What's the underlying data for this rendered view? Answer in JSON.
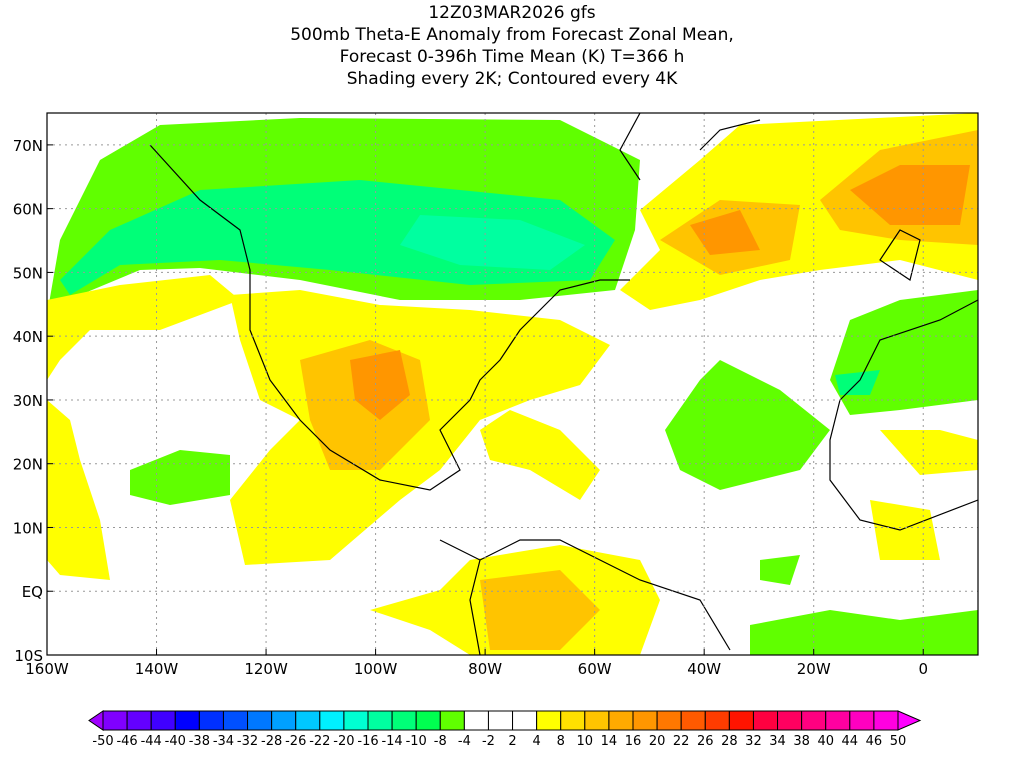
{
  "titles": [
    "12Z03MAR2026 gfs",
    "500mb Theta-E Anomaly from Forecast Zonal Mean,",
    "Forecast 0-396h Time Mean (K) T=366 h",
    "Shading every 2K; Contoured every 4K"
  ],
  "chart_data": {
    "type": "heatmap",
    "title": "500mb Theta-E Anomaly from Forecast Zonal Mean, Forecast 0-396h Time Mean (K) T=366 h",
    "units": "K",
    "xlim": [
      -160,
      10
    ],
    "ylim": [
      -10,
      75
    ],
    "grid": true,
    "x_ticks": [
      {
        "v": -160,
        "label": "160W"
      },
      {
        "v": -140,
        "label": "140W"
      },
      {
        "v": -120,
        "label": "120W"
      },
      {
        "v": -100,
        "label": "100W"
      },
      {
        "v": -80,
        "label": "80W"
      },
      {
        "v": -60,
        "label": "60W"
      },
      {
        "v": -40,
        "label": "40W"
      },
      {
        "v": -20,
        "label": "20W"
      },
      {
        "v": 0,
        "label": "0"
      }
    ],
    "y_ticks": [
      {
        "v": 70,
        "label": "70N"
      },
      {
        "v": 60,
        "label": "60N"
      },
      {
        "v": 50,
        "label": "50N"
      },
      {
        "v": 40,
        "label": "40N"
      },
      {
        "v": 30,
        "label": "30N"
      },
      {
        "v": 20,
        "label": "20N"
      },
      {
        "v": 10,
        "label": "10N"
      },
      {
        "v": 0,
        "label": "EQ"
      },
      {
        "v": -10,
        "label": "10S"
      }
    ],
    "colorbar": {
      "labels": [
        "-50",
        "-46",
        "-44",
        "-40",
        "-38",
        "-34",
        "-32",
        "-28",
        "-26",
        "-22",
        "-20",
        "-16",
        "-14",
        "-10",
        "-8",
        "-4",
        "-2",
        "2",
        "4",
        "8",
        "10",
        "14",
        "16",
        "20",
        "22",
        "26",
        "28",
        "32",
        "34",
        "38",
        "40",
        "44",
        "46",
        "50"
      ],
      "colors": [
        "#8000ff",
        "#6400ff",
        "#4000ff",
        "#0000ff",
        "#0030ff",
        "#0050ff",
        "#0078ff",
        "#00a0ff",
        "#00c8ff",
        "#00f0ff",
        "#00ffd2",
        "#00ffa0",
        "#00ff78",
        "#00ff50",
        "#60ff00",
        "#ffffff",
        "#ffffff",
        "#ffffff",
        "#ffff00",
        "#ffe000",
        "#ffc400",
        "#ffaa00",
        "#ff9600",
        "#ff7800",
        "#ff5a00",
        "#ff3c00",
        "#ff1400",
        "#ff0040",
        "#ff0060",
        "#ff0080",
        "#ff00a0",
        "#ff00c0",
        "#ff00e0"
      ],
      "under_color": "#a000ff",
      "over_color": "#ff00ff"
    },
    "features": [
      {
        "region": "Canada / North Pacific",
        "anomaly": "negative (-4 to -14)"
      },
      {
        "region": "Greenland / North Atlantic / NW Europe",
        "anomaly": "positive (4 to 20)"
      },
      {
        "region": "South-central US / Mexico / subtropical Pacific",
        "anomaly": "positive (4 to 16)"
      },
      {
        "region": "Central Atlantic subtropics",
        "anomaly": "negative (-4 to -8)"
      },
      {
        "region": "Northern South America",
        "anomaly": "positive (4 to 10)"
      }
    ]
  }
}
